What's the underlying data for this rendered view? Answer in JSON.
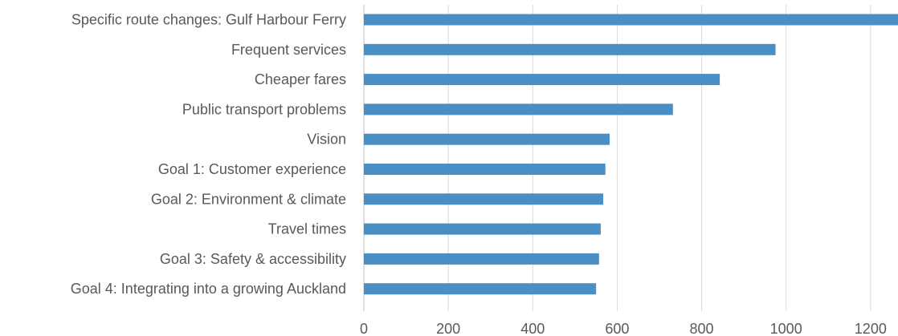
{
  "chart_data": {
    "type": "bar",
    "orientation": "horizontal",
    "categories": [
      "Specific route changes: Gulf Harbour Ferry",
      "Frequent services",
      "Cheaper fares",
      "Public transport problems",
      "Vision",
      "Goal 1: Customer experience",
      "Goal 2: Environment & climate",
      "Travel times",
      "Goal 3: Safety & accessibility",
      "Goal 4: Integrating into a growing Auckland"
    ],
    "values": [
      1265,
      975,
      843,
      732,
      582,
      572,
      567,
      561,
      557,
      550
    ],
    "xlim": [
      0,
      1265
    ],
    "xticks": [
      0,
      200,
      400,
      600,
      800,
      1000,
      1200
    ],
    "grid": true,
    "bar_color": "#4a8fc4",
    "title": "",
    "xlabel": "",
    "ylabel": ""
  }
}
